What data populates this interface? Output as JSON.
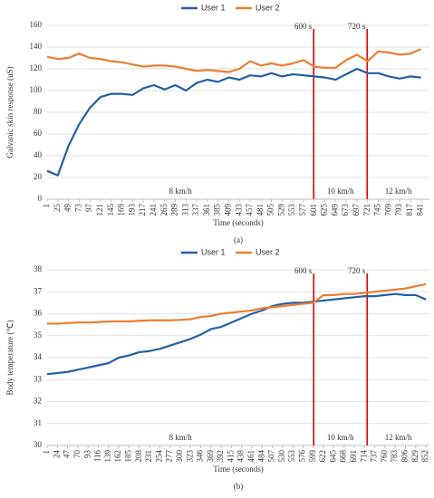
{
  "chart_data": [
    {
      "type": "line",
      "caption": "(a)",
      "x_label": "Time (seconds)",
      "y_label": "Galvanic skin response (uS)",
      "x": [
        1,
        25,
        49,
        73,
        97,
        121,
        145,
        169,
        193,
        217,
        241,
        265,
        289,
        313,
        337,
        361,
        385,
        409,
        433,
        457,
        481,
        505,
        529,
        553,
        577,
        601,
        625,
        649,
        673,
        697,
        721,
        745,
        769,
        793,
        817,
        841
      ],
      "xticks": [
        1,
        25,
        49,
        73,
        97,
        121,
        145,
        169,
        193,
        217,
        241,
        265,
        289,
        313,
        337,
        361,
        385,
        409,
        433,
        457,
        481,
        505,
        529,
        553,
        577,
        601,
        625,
        649,
        673,
        697,
        721,
        745,
        769,
        793,
        817,
        841
      ],
      "xlim": [
        1,
        860
      ],
      "ylim": [
        0,
        160
      ],
      "yticks": [
        0,
        20,
        40,
        60,
        80,
        100,
        120,
        140,
        160
      ],
      "grid": true,
      "series": [
        {
          "name": "User 1",
          "color": "#2360a5",
          "values": [
            26,
            22,
            49,
            69,
            84,
            94,
            97,
            97,
            96,
            102,
            105,
            101,
            105,
            100,
            107,
            110,
            108,
            112,
            110,
            114,
            113,
            116,
            113,
            115,
            114,
            113,
            112,
            110,
            115,
            120,
            116,
            116,
            113,
            111,
            113,
            112
          ]
        },
        {
          "name": "User 2",
          "color": "#ed7d31",
          "values": [
            131,
            129,
            130,
            134,
            130,
            129,
            127,
            126,
            124,
            122,
            123,
            123,
            122,
            120,
            118,
            119,
            118,
            117,
            120,
            127,
            123,
            125,
            123,
            125,
            128,
            122,
            121,
            121,
            128,
            133,
            127,
            136,
            135,
            133,
            134,
            138
          ]
        }
      ],
      "markers": [
        {
          "x": 600,
          "label": "600 s"
        },
        {
          "x": 720,
          "label": "720 s"
        }
      ],
      "regions": [
        "8 km/h",
        "10 km/h",
        "12 km/h"
      ]
    },
    {
      "type": "line",
      "caption": "(b)",
      "x_label": "Time (seconds)",
      "y_label": "Body temperature (℃)",
      "x": [
        1,
        24,
        47,
        70,
        93,
        116,
        139,
        162,
        185,
        208,
        231,
        254,
        277,
        300,
        323,
        346,
        369,
        392,
        415,
        438,
        461,
        484,
        507,
        530,
        553,
        576,
        599,
        622,
        645,
        668,
        691,
        714,
        737,
        760,
        783,
        806,
        829,
        852
      ],
      "xticks": [
        1,
        24,
        47,
        70,
        93,
        116,
        139,
        162,
        185,
        208,
        231,
        254,
        277,
        300,
        323,
        346,
        369,
        392,
        415,
        438,
        461,
        484,
        507,
        530,
        553,
        576,
        599,
        622,
        645,
        668,
        691,
        714,
        737,
        760,
        783,
        806,
        829,
        852
      ],
      "xlim": [
        1,
        860
      ],
      "ylim": [
        30,
        38
      ],
      "yticks": [
        30,
        31,
        32,
        33,
        34,
        35,
        36,
        37,
        38
      ],
      "grid": true,
      "series": [
        {
          "name": "User 1",
          "color": "#2360a5",
          "values": [
            33.25,
            33.3,
            33.35,
            33.45,
            33.55,
            33.65,
            33.75,
            34.0,
            34.1,
            34.25,
            34.3,
            34.4,
            34.55,
            34.7,
            34.85,
            35.05,
            35.3,
            35.4,
            35.6,
            35.8,
            36.0,
            36.15,
            36.35,
            36.45,
            36.5,
            36.5,
            36.55,
            36.6,
            36.65,
            36.7,
            36.75,
            36.8,
            36.8,
            36.85,
            36.9,
            36.85,
            36.85,
            36.65
          ]
        },
        {
          "name": "User 2",
          "color": "#ed7d31",
          "values": [
            35.55,
            35.55,
            35.58,
            35.6,
            35.6,
            35.62,
            35.65,
            35.65,
            35.65,
            35.68,
            35.7,
            35.7,
            35.7,
            35.72,
            35.75,
            35.85,
            35.9,
            36.0,
            36.05,
            36.1,
            36.15,
            36.25,
            36.3,
            36.35,
            36.4,
            36.45,
            36.5,
            36.85,
            36.85,
            36.9,
            36.9,
            36.95,
            37.0,
            37.05,
            37.1,
            37.15,
            37.25,
            37.35
          ]
        }
      ],
      "markers": [
        {
          "x": 600,
          "label": "600 s"
        },
        {
          "x": 720,
          "label": "720 s"
        }
      ],
      "regions": [
        "8 km/h",
        "10 km/h",
        "12 km/h"
      ]
    }
  ]
}
